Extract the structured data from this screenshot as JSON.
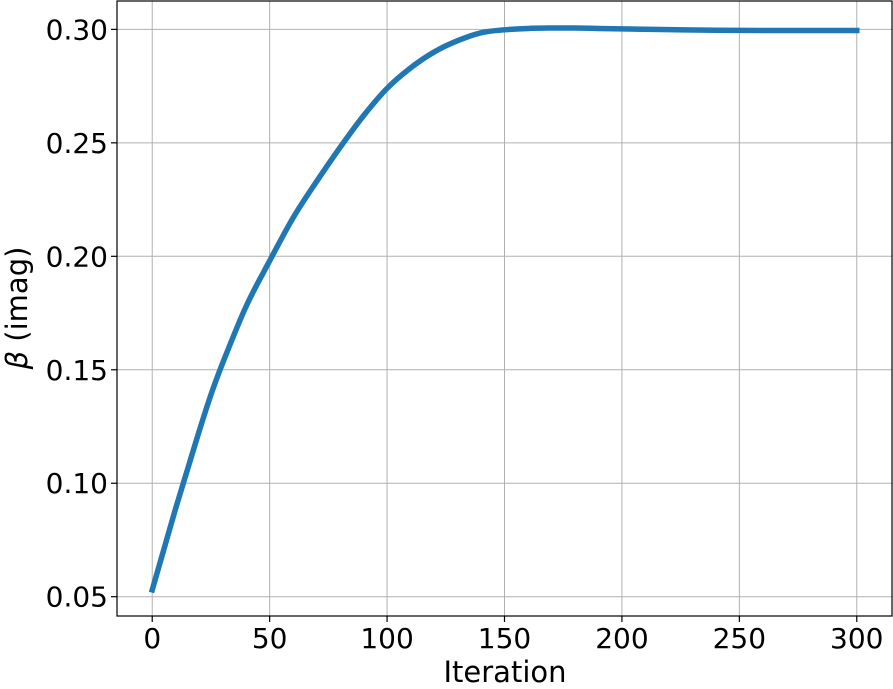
{
  "chart_data": {
    "type": "line",
    "xlabel": "Iteration",
    "ylabel_symbol": "β",
    "ylabel_text": " (imag)",
    "xlim": [
      -15,
      315
    ],
    "ylim": [
      0.0415,
      0.3125
    ],
    "xticks": [
      0,
      50,
      100,
      150,
      200,
      250,
      300
    ],
    "xtick_labels": [
      "0",
      "50",
      "100",
      "150",
      "200",
      "250",
      "300"
    ],
    "yticks": [
      0.05,
      0.1,
      0.15,
      0.2,
      0.25,
      0.3
    ],
    "ytick_labels": [
      "0.05",
      "0.10",
      "0.15",
      "0.20",
      "0.25",
      "0.30"
    ],
    "grid": true,
    "series": [
      {
        "color": "#1f77b4",
        "x": [
          0,
          5,
          10,
          15,
          20,
          25,
          30,
          40,
          50,
          60,
          70,
          80,
          90,
          100,
          110,
          120,
          130,
          140,
          150,
          160,
          170,
          175,
          180,
          190,
          200,
          220,
          240,
          260,
          280,
          300
        ],
        "y": [
          0.053,
          0.071,
          0.089,
          0.106,
          0.123,
          0.139,
          0.153,
          0.178,
          0.198,
          0.217,
          0.233,
          0.248,
          0.262,
          0.274,
          0.283,
          0.29,
          0.295,
          0.2985,
          0.2998,
          0.3004,
          0.3006,
          0.3006,
          0.3006,
          0.3004,
          0.3002,
          0.2999,
          0.2996,
          0.2995,
          0.2995,
          0.2995
        ]
      }
    ]
  }
}
